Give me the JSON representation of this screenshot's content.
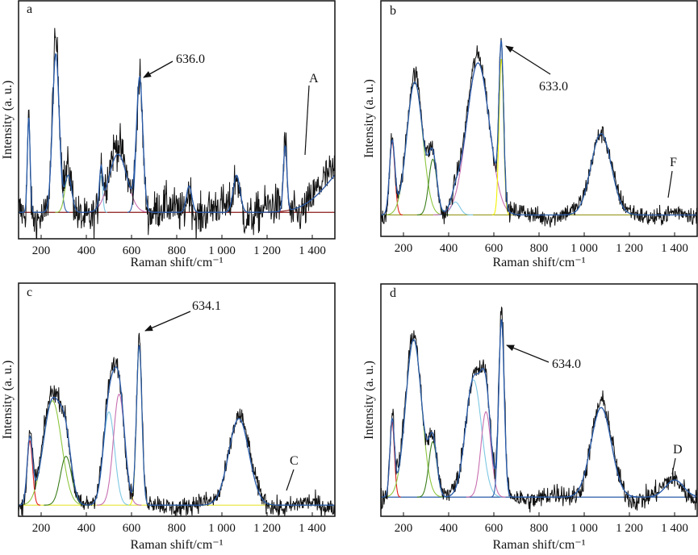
{
  "chart_data": [
    {
      "type": "line",
      "panel_label": "a",
      "xlabel": "Raman shift/cm⁻¹",
      "ylabel": "Intensity (a. u.)",
      "xlim": [
        100,
        1500
      ],
      "ylim": [
        -15,
        120
      ],
      "x_ticks": [
        200,
        400,
        600,
        800,
        1000,
        1200,
        1400
      ],
      "x_tick_labels": [
        "200",
        "400",
        "600",
        "800",
        "1 000",
        "1 200",
        "1 400"
      ],
      "noise": 8,
      "peaks": [
        {
          "center": 145,
          "amplitude": 54,
          "width": 6,
          "color": "#7ec8e3"
        },
        {
          "center": 265,
          "amplitude": 90,
          "width": 15,
          "color": "#2a5caa"
        },
        {
          "center": 320,
          "amplitude": 21,
          "width": 15,
          "color": "#8dc63f"
        },
        {
          "center": 465,
          "amplitude": 21,
          "width": 7,
          "color": "#7ec8e3"
        },
        {
          "center": 540,
          "amplitude": 33,
          "width": 40,
          "color": "#c86fb0"
        },
        {
          "center": 636,
          "amplitude": 75,
          "width": 14,
          "color": "#2a5caa"
        },
        {
          "center": 855,
          "amplitude": 15,
          "width": 12,
          "color": "#2a5caa"
        },
        {
          "center": 1065,
          "amplitude": 21,
          "width": 15,
          "color": "#2a5caa"
        },
        {
          "center": 1280,
          "amplitude": 37,
          "width": 8,
          "color": "#c86fb0"
        },
        {
          "center": 1600,
          "amplitude": 30,
          "width": 120,
          "color": "#8b1a1a"
        }
      ],
      "baseline_color": "#8b1a1a",
      "annotations": [
        {
          "text": "636.0",
          "target_x": 636
        },
        {
          "text": "A",
          "target_x": 1370
        }
      ]
    },
    {
      "type": "line",
      "panel_label": "b",
      "xlabel": "Raman shift/cm⁻¹",
      "ylabel": "Intensity (a. u.)",
      "xlim": [
        100,
        1500
      ],
      "ylim": [
        -10,
        100
      ],
      "x_ticks": [
        200,
        400,
        600,
        800,
        1000,
        1200,
        1400
      ],
      "x_tick_labels": [
        "200",
        "400",
        "600",
        "800",
        "1 000",
        "1 200",
        "1 400"
      ],
      "noise": 3,
      "peaks": [
        {
          "center": 150,
          "amplitude": 34,
          "width": 12,
          "color": "#e0201c"
        },
        {
          "center": 250,
          "amplitude": 62,
          "width": 35,
          "color": "#8dc63f"
        },
        {
          "center": 330,
          "amplitude": 26,
          "width": 18,
          "color": "#3a7d1a"
        },
        {
          "center": 430,
          "amplitude": 6,
          "width": 20,
          "color": "#7ec8e3"
        },
        {
          "center": 530,
          "amplitude": 71,
          "width": 50,
          "color": "#c86fb0"
        },
        {
          "center": 633,
          "amplitude": 73,
          "width": 10,
          "color": "#f2f200"
        },
        {
          "center": 1075,
          "amplitude": 38,
          "width": 45,
          "color": "#f2f200"
        }
      ],
      "baseline_color": "#9a9a20",
      "annotations": [
        {
          "text": "633.0",
          "target_x": 633
        },
        {
          "text": "F",
          "target_x": 1370
        }
      ]
    },
    {
      "type": "line",
      "panel_label": "c",
      "xlabel": "Raman shift/cm⁻¹",
      "ylabel": "Intensity (a. u.)",
      "xlim": [
        100,
        1500
      ],
      "ylim": [
        -5,
        100
      ],
      "x_ticks": [
        200,
        400,
        600,
        800,
        1000,
        1200,
        1400
      ],
      "x_tick_labels": [
        "200",
        "400",
        "600",
        "800",
        "1 000",
        "1 200",
        "1 400"
      ],
      "noise": 3,
      "peaks": [
        {
          "center": 150,
          "amplitude": 29,
          "width": 12,
          "color": "#e0201c"
        },
        {
          "center": 250,
          "amplitude": 47,
          "width": 40,
          "color": "#8dc63f"
        },
        {
          "center": 310,
          "amplitude": 22,
          "width": 25,
          "color": "#3a7d1a"
        },
        {
          "center": 500,
          "amplitude": 42,
          "width": 25,
          "color": "#7ec8e3"
        },
        {
          "center": 545,
          "amplitude": 50,
          "width": 25,
          "color": "#c86fb0"
        },
        {
          "center": 634,
          "amplitude": 72,
          "width": 12,
          "color": "#f2f200"
        },
        {
          "center": 1075,
          "amplitude": 39,
          "width": 45,
          "color": "#2a5caa"
        }
      ],
      "baseline_color": "#e8e84a",
      "annotations": [
        {
          "text": "634.1",
          "target_x": 634
        },
        {
          "text": "C",
          "target_x": 1250
        }
      ]
    },
    {
      "type": "line",
      "panel_label": "d",
      "xlabel": "Raman shift/cm⁻¹",
      "ylabel": "Intensity (a. u.)",
      "xlim": [
        100,
        1500
      ],
      "ylim": [
        -9,
        100
      ],
      "x_ticks": [
        200,
        400,
        600,
        800,
        1000,
        1200,
        1400
      ],
      "x_tick_labels": [
        "200",
        "400",
        "600",
        "800",
        "1 000",
        "1 200",
        "1 400"
      ],
      "noise": 3.5,
      "peaks": [
        {
          "center": 150,
          "amplitude": 35,
          "width": 10,
          "color": "#e0201c"
        },
        {
          "center": 245,
          "amplitude": 74,
          "width": 35,
          "color": "#8dc63f"
        },
        {
          "center": 330,
          "amplitude": 26,
          "width": 18,
          "color": "#3a7d1a"
        },
        {
          "center": 510,
          "amplitude": 55,
          "width": 35,
          "color": "#7ec8e3"
        },
        {
          "center": 565,
          "amplitude": 40,
          "width": 22,
          "color": "#c86fb0"
        },
        {
          "center": 634,
          "amplitude": 83,
          "width": 12,
          "color": "#2a5caa"
        },
        {
          "center": 1075,
          "amplitude": 42,
          "width": 45,
          "color": "#2a5caa"
        },
        {
          "center": 1400,
          "amplitude": 8,
          "width": 40,
          "color": "#2a5caa"
        }
      ],
      "baseline_color": "#2a5caa",
      "annotations": [
        {
          "text": "634.0",
          "target_x": 634
        },
        {
          "text": "D",
          "target_x": 1390
        }
      ]
    }
  ],
  "colors": {
    "spectrum": "#111111",
    "fit": "#2a5caa"
  }
}
